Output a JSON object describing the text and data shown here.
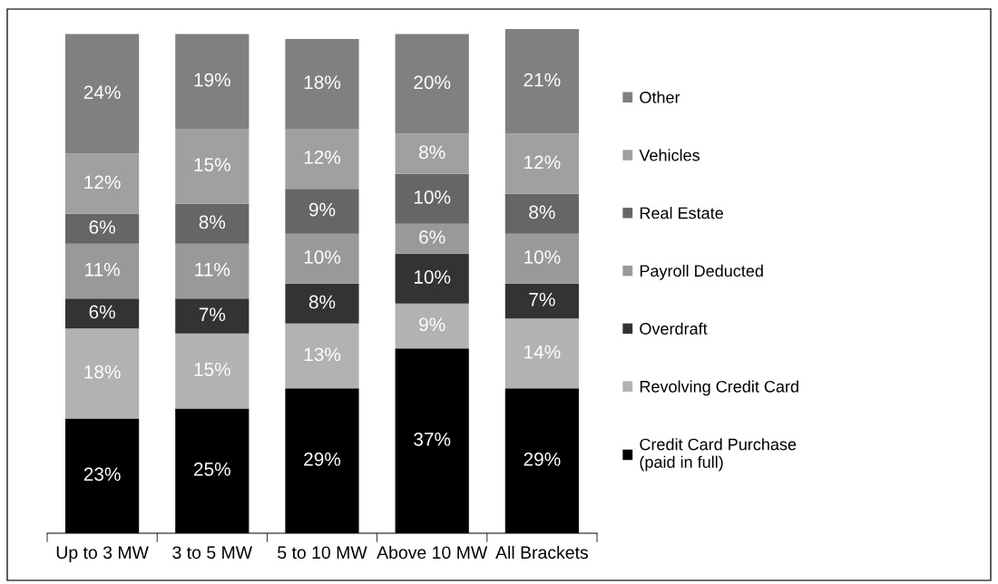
{
  "chart_data": {
    "type": "bar",
    "stacked": true,
    "legend": "right",
    "grid": false,
    "categories": [
      "Up to 3 MW",
      "3 to 5 MW",
      "5 to 10 MW",
      "Above 10 MW",
      "All Brackets"
    ],
    "series": [
      {
        "name": "Credit Card Purchase\n(paid in full)",
        "color": "#000000",
        "values": [
          23,
          25,
          29,
          37,
          29
        ],
        "value_labels": [
          "23%",
          "25%",
          "29%",
          "37%",
          "29%"
        ]
      },
      {
        "name": "Revolving Credit Card",
        "color": "#b2b2b2",
        "values": [
          18,
          15,
          13,
          9,
          14
        ],
        "value_labels": [
          "18%",
          "15%",
          "13%",
          "9%",
          "14%"
        ]
      },
      {
        "name": "Overdraft",
        "color": "#333333",
        "values": [
          6,
          7,
          8,
          10,
          7
        ],
        "value_labels": [
          "6%",
          "7%",
          "8%",
          "10%",
          "7%"
        ]
      },
      {
        "name": "Payroll Deducted",
        "color": "#999999",
        "values": [
          11,
          11,
          10,
          6,
          10
        ],
        "value_labels": [
          "11%",
          "11%",
          "10%",
          "6%",
          "10%"
        ]
      },
      {
        "name": "Real Estate",
        "color": "#666666",
        "values": [
          6,
          8,
          9,
          10,
          8
        ],
        "value_labels": [
          "6%",
          "8%",
          "9%",
          "10%",
          "8%"
        ]
      },
      {
        "name": "Vehicles",
        "color": "#a0a0a0",
        "values": [
          12,
          15,
          12,
          8,
          12
        ],
        "value_labels": [
          "12%",
          "15%",
          "12%",
          "8%",
          "12%"
        ]
      },
      {
        "name": "Other",
        "color": "#808080",
        "values": [
          24,
          19,
          18,
          20,
          21
        ],
        "value_labels": [
          "24%",
          "19%",
          "18%",
          "20%",
          "21%"
        ]
      }
    ]
  }
}
